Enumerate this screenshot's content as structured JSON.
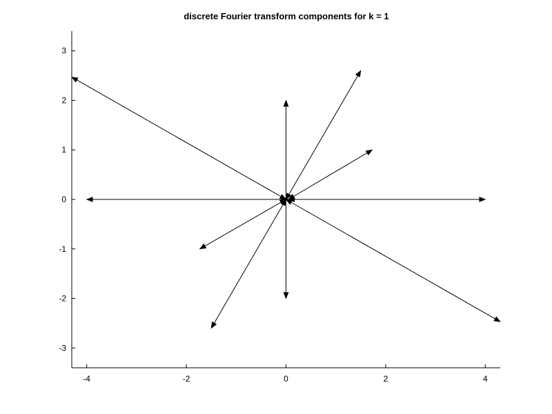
{
  "chart_data": {
    "type": "quiver",
    "title": "discrete Fourier transform components for k = 1",
    "xlabel": "",
    "ylabel": "",
    "xlim": [
      -4.3,
      4.3
    ],
    "ylim": [
      -3.4,
      3.4
    ],
    "x_ticks": [
      -4,
      -2,
      0,
      2,
      4
    ],
    "y_ticks": [
      -3,
      -2,
      -1,
      0,
      1,
      2,
      3
    ],
    "grid": false,
    "legend": "none",
    "series": [
      {
        "style": "double-headed-arrow",
        "color": "#000000",
        "vectors": [
          {
            "x1": -4.3,
            "y1": 2.47,
            "x2": 0.0,
            "y2": 0.0
          },
          {
            "x1": 0.0,
            "y1": 0.0,
            "x2": 4.3,
            "y2": -2.47
          },
          {
            "x1": -4.0,
            "y1": 0.0,
            "x2": 0.05,
            "y2": 0.0
          },
          {
            "x1": 0.05,
            "y1": 0.0,
            "x2": 4.0,
            "y2": 0.0
          },
          {
            "x1": 0.0,
            "y1": 2.0,
            "x2": 0.0,
            "y2": -2.0
          },
          {
            "x1": 0.0,
            "y1": 0.0,
            "x2": 1.5,
            "y2": 2.6
          },
          {
            "x1": 0.0,
            "y1": 0.0,
            "x2": -1.5,
            "y2": -2.6
          },
          {
            "x1": 0.05,
            "y1": 0.0,
            "x2": 1.73,
            "y2": 1.0
          },
          {
            "x1": 0.0,
            "y1": 0.0,
            "x2": -1.73,
            "y2": -1.0
          }
        ]
      }
    ]
  }
}
